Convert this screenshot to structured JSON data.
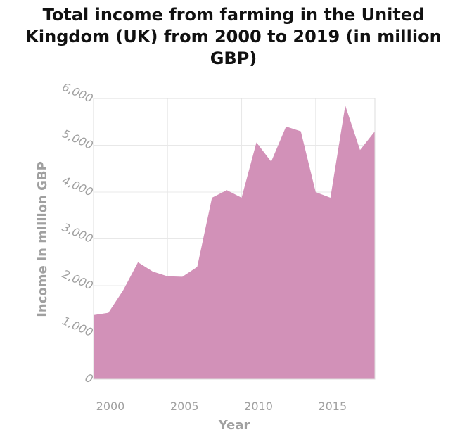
{
  "title_lines": [
    "Total income from farming in the United",
    "Kingdom (UK) from 2000 to 2019 (in million",
    "GBP)"
  ],
  "chart_data": {
    "type": "area",
    "title": "Total income from farming in the United Kingdom (UK) from 2000 to 2019 (in million GBP)",
    "xlabel": "Year",
    "ylabel": "Income in million GBP",
    "x": [
      2000,
      2001,
      2002,
      2003,
      2004,
      2005,
      2006,
      2007,
      2008,
      2009,
      2010,
      2011,
      2012,
      2013,
      2014,
      2015,
      2016,
      2017,
      2018,
      2019
    ],
    "series": [
      {
        "values": [
          1370,
          1420,
          1900,
          2500,
          2300,
          2200,
          2190,
          2400,
          3880,
          4040,
          3880,
          5060,
          4650,
          5400,
          5300,
          4000,
          3880,
          5850,
          4900,
          5300
        ]
      }
    ],
    "xlim": [
      2000,
      2019
    ],
    "ylim": [
      0,
      6000
    ],
    "xticks": [
      2000,
      2005,
      2010,
      2015
    ],
    "xtick_labels": [
      "2000",
      "2005",
      "2010",
      "2015"
    ],
    "yticks": [
      0,
      1000,
      2000,
      3000,
      4000,
      5000,
      6000
    ],
    "ytick_labels": [
      "0",
      "1,000",
      "2,000",
      "3,000",
      "4,000",
      "5,000",
      "6,000"
    ],
    "grid": true,
    "fill_color": "#d291b8",
    "grid_color": "#e8e8e8",
    "tick_color": "#a0a0a0"
  }
}
